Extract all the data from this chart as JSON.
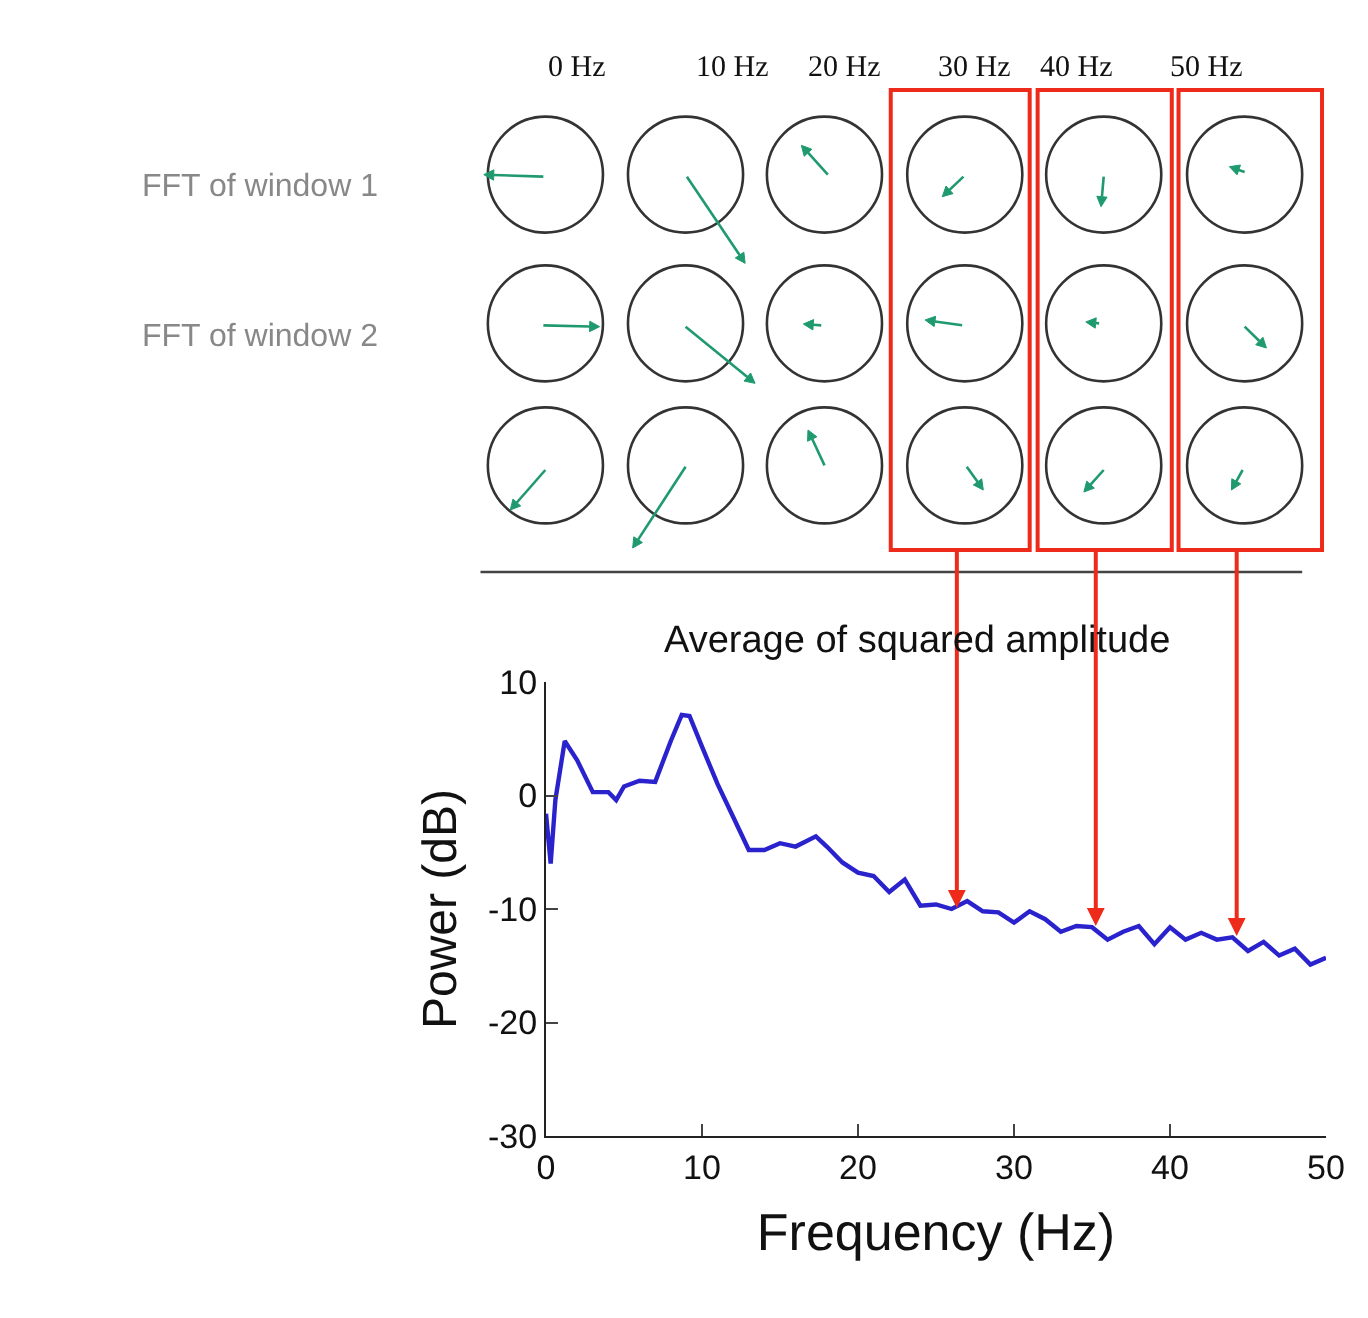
{
  "chart_data": {
    "type": "line",
    "title": "Average of squared amplitude",
    "xlabel": "Frequency (Hz)",
    "ylabel": "Power (dB)",
    "x": [
      0,
      0.3,
      0.6,
      1.2,
      2,
      3,
      4,
      4.5,
      5,
      6,
      7,
      8,
      8.7,
      9.2,
      10,
      11,
      12,
      13,
      14,
      15,
      16,
      17.3,
      18,
      19,
      20,
      21,
      22,
      23,
      24,
      25,
      26,
      27,
      28,
      29,
      30,
      31,
      32,
      33,
      34,
      35,
      36,
      37,
      38,
      39,
      40,
      41,
      42,
      43,
      44,
      45,
      46,
      47,
      48,
      49,
      50
    ],
    "series": [
      {
        "color": "#2a22cc",
        "values": [
          -1.6,
          -6,
          -0.4,
          4.8,
          3.1,
          0.3,
          0.3,
          -0.4,
          0.8,
          1.3,
          1.2,
          4.8,
          7.1,
          7,
          4.3,
          1,
          -1.9,
          -4.8,
          -4.8,
          -4.2,
          -4.5,
          -3.6,
          -4.5,
          -5.9,
          -6.8,
          -7.1,
          -8.5,
          -7.4,
          -9.7,
          -9.6,
          -10,
          -9.3,
          -10.2,
          -10.3,
          -11.2,
          -10.2,
          -10.9,
          -12,
          -11.5,
          -11.6,
          -12.7,
          -12,
          -11.5,
          -13.1,
          -11.6,
          -12.7,
          -12.1,
          -12.7,
          -12.5,
          -13.7,
          -12.9,
          -14.1,
          -13.5,
          -14.9,
          -14.3
        ]
      }
    ],
    "xlim": [
      0,
      50
    ],
    "ylim": [
      -30,
      10
    ],
    "xticks": [
      0,
      10,
      20,
      30,
      40,
      50
    ],
    "yticks": [
      -30,
      -20,
      -10,
      0,
      10
    ],
    "grid": false,
    "legend": false,
    "marker": "none",
    "line_style": "solid",
    "annotations": [
      "0 Hz",
      "10 Hz",
      "20 Hz",
      "30 Hz",
      "40 Hz",
      "50 Hz",
      "FFT of window 1",
      "FFT of window 2"
    ]
  }
}
